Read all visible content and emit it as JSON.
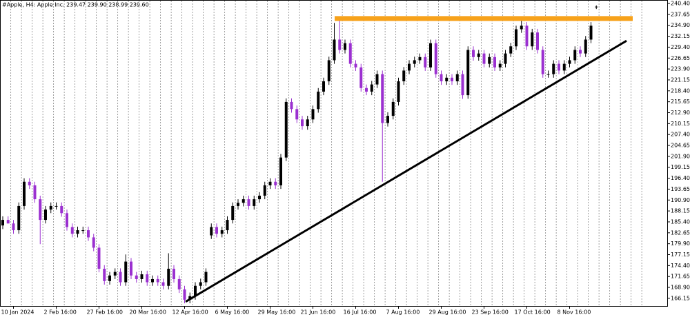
{
  "chart_data": {
    "type": "candlestick",
    "title": "#Apple, H4:  Apple Inc.  239.47 239.90 238.99 239.60",
    "categories": [
      null,
      null,
      "10 Jan 2024",
      null,
      null,
      null,
      null,
      null,
      null,
      null,
      "2 Feb 16:00",
      null,
      null,
      null,
      null,
      null,
      null,
      null,
      "27 Feb 16:00",
      null,
      null,
      null,
      null,
      null,
      null,
      null,
      "20 Mar 16:00",
      null,
      null,
      null,
      null,
      null,
      null,
      null,
      "12 Apr 16:00",
      null,
      null,
      null,
      null,
      null,
      null,
      null,
      "6 May 16:00",
      null,
      null,
      null,
      null,
      null,
      null,
      null,
      "29 May 16:00",
      null,
      null,
      null,
      null,
      null,
      null,
      null,
      "21 Jun 16:00",
      null,
      null,
      null,
      null,
      null,
      null,
      null,
      "16 Jul 16:00",
      null,
      null,
      null,
      null,
      null,
      null,
      null,
      "7 Aug 16:00",
      null,
      null,
      null,
      null,
      null,
      null,
      null,
      "29 Aug 16:00",
      null,
      null,
      null,
      null,
      null,
      null,
      null,
      "23 Sep 16:00",
      null,
      null,
      null,
      null,
      null,
      null,
      null,
      "17 Oct 16:00",
      null,
      null,
      null,
      null,
      null,
      null,
      null,
      "8 Nov 16:00",
      null,
      null,
      null,
      null,
      null
    ],
    "open": [
      184.5,
      185.9,
      185.0,
      183.3,
      189.4,
      195.5,
      194.6,
      191.1,
      185.9,
      188.5,
      189.4,
      189.4,
      187.6,
      184.1,
      182.4,
      183.3,
      183.3,
      181.5,
      178.9,
      173.6,
      170.5,
      171.9,
      172.8,
      170.2,
      175.4,
      171.9,
      171.0,
      172.2,
      170.2,
      171.0,
      170.2,
      169.3,
      173.6,
      171.0,
      168.4,
      165.8,
      166.7,
      169.3,
      170.2,
      182.0,
      184.1,
      182.4,
      183.3,
      185.9,
      189.4,
      190.2,
      191.1,
      189.4,
      191.1,
      192.0,
      194.6,
      195.5,
      194.6,
      201.6,
      215.6,
      213.8,
      211.2,
      209.5,
      211.2,
      213.8,
      218.2,
      220.8,
      226.1,
      231.3,
      228.7,
      230.4,
      225.2,
      224.3,
      219.1,
      218.2,
      220.0,
      222.6,
      210.3,
      212.1,
      215.6,
      220.8,
      223.5,
      225.2,
      226.1,
      226.9,
      224.3,
      230.4,
      222.6,
      220.8,
      221.7,
      220.8,
      222.6,
      217.3,
      228.7,
      226.9,
      227.8,
      225.2,
      226.9,
      224.3,
      225.2,
      227.8,
      229.6,
      233.9,
      234.8,
      229.6,
      233.1,
      228.7,
      222.6,
      222.6,
      225.2,
      223.5,
      225.2,
      226.1,
      228.7,
      227.8,
      231.3,
      239.47
    ],
    "high": [
      186.8,
      186.8,
      185.9,
      190.3,
      196.4,
      196.4,
      195.5,
      192.0,
      189.4,
      190.3,
      190.3,
      190.3,
      188.5,
      185.0,
      184.2,
      184.2,
      184.2,
      182.4,
      179.8,
      174.5,
      172.8,
      173.7,
      173.7,
      177.2,
      176.3,
      172.8,
      173.1,
      173.1,
      171.9,
      171.9,
      171.1,
      177.5,
      174.5,
      171.9,
      169.3,
      167.6,
      170.2,
      171.1,
      173.7,
      185.0,
      185.0,
      184.2,
      186.8,
      190.3,
      191.1,
      192.0,
      192.0,
      192.0,
      192.9,
      195.5,
      196.4,
      196.4,
      202.5,
      216.5,
      216.5,
      214.7,
      212.1,
      212.1,
      214.7,
      219.1,
      221.7,
      227.0,
      235.5,
      236.2,
      231.3,
      231.3,
      226.1,
      225.2,
      220.0,
      220.9,
      223.5,
      223.5,
      213.0,
      216.5,
      221.7,
      224.4,
      226.1,
      227.0,
      227.8,
      227.8,
      231.3,
      231.3,
      223.5,
      222.6,
      222.6,
      223.5,
      223.5,
      229.6,
      229.6,
      228.7,
      228.7,
      227.8,
      227.8,
      226.1,
      228.7,
      230.5,
      234.8,
      236.2,
      235.7,
      234.0,
      234.0,
      229.6,
      223.5,
      226.1,
      226.1,
      226.1,
      227.0,
      229.6,
      229.6,
      232.2,
      235.7,
      239.9
    ],
    "low": [
      183.6,
      185.0,
      182.4,
      182.4,
      188.5,
      193.7,
      190.2,
      179.8,
      185.0,
      187.6,
      188.5,
      186.7,
      183.2,
      181.5,
      181.5,
      182.4,
      180.6,
      178.0,
      172.7,
      169.6,
      169.6,
      171.0,
      169.3,
      169.3,
      171.0,
      170.1,
      170.1,
      169.3,
      169.3,
      169.3,
      168.4,
      168.4,
      170.1,
      167.5,
      164.9,
      164.9,
      165.8,
      168.4,
      169.3,
      181.1,
      181.5,
      181.5,
      182.4,
      185.0,
      188.5,
      189.3,
      188.5,
      188.5,
      190.2,
      191.1,
      193.7,
      193.7,
      193.7,
      200.7,
      212.9,
      210.3,
      208.6,
      208.6,
      210.3,
      212.9,
      217.3,
      219.9,
      225.2,
      227.8,
      227.8,
      224.3,
      223.4,
      218.2,
      217.3,
      217.3,
      219.1,
      195.5,
      209.4,
      211.2,
      214.7,
      219.9,
      222.6,
      224.3,
      225.2,
      223.4,
      223.4,
      221.7,
      219.9,
      219.9,
      219.9,
      219.9,
      216.4,
      216.4,
      226.0,
      226.0,
      224.3,
      224.3,
      223.4,
      223.4,
      224.3,
      226.9,
      228.7,
      233.0,
      228.7,
      228.7,
      227.8,
      221.7,
      221.7,
      221.7,
      222.6,
      222.6,
      224.3,
      225.2,
      226.9,
      226.9,
      230.4,
      238.99
    ],
    "close": [
      185.9,
      185.0,
      183.3,
      189.4,
      195.5,
      194.6,
      191.1,
      185.9,
      188.5,
      189.4,
      189.4,
      187.6,
      184.1,
      182.4,
      183.3,
      183.3,
      181.5,
      178.9,
      173.6,
      170.5,
      171.9,
      172.8,
      170.2,
      175.4,
      171.9,
      171.0,
      172.2,
      170.2,
      171.0,
      170.2,
      169.3,
      173.6,
      171.0,
      168.4,
      165.8,
      166.7,
      169.3,
      170.2,
      172.8,
      184.1,
      182.4,
      183.3,
      185.9,
      189.4,
      190.2,
      191.1,
      189.4,
      191.1,
      192.0,
      194.6,
      195.5,
      194.6,
      201.6,
      215.6,
      213.8,
      211.2,
      209.5,
      211.2,
      213.8,
      218.2,
      220.8,
      226.1,
      231.3,
      228.7,
      230.4,
      225.2,
      224.3,
      219.1,
      218.2,
      220.0,
      222.6,
      210.3,
      212.1,
      215.6,
      220.8,
      223.5,
      225.2,
      226.1,
      226.9,
      224.3,
      230.4,
      222.6,
      220.8,
      221.7,
      220.8,
      222.6,
      217.3,
      228.7,
      226.9,
      227.8,
      225.2,
      226.9,
      224.3,
      225.2,
      227.8,
      229.6,
      233.9,
      234.8,
      229.6,
      233.1,
      228.7,
      222.6,
      222.6,
      225.2,
      223.5,
      225.2,
      226.1,
      228.7,
      227.8,
      231.3,
      234.8,
      239.6
    ],
    "up_color": "#000000",
    "down_color": "#9b30d0",
    "ylim": [
      164.05,
      241.27
    ],
    "yticks": [
      166.15,
      {
        "value": 168.9,
        "label": "168.90"
      },
      171.65,
      {
        "value": 174.4,
        "label": "174.40"
      },
      177.15,
      {
        "value": 179.9,
        "label": "179.90"
      },
      182.65,
      {
        "value": 185.4,
        "label": "185.40"
      },
      188.15,
      {
        "value": 190.9,
        "label": "190.90"
      },
      193.65,
      {
        "value": 196.4,
        "label": "196.40"
      },
      199.15,
      {
        "value": 201.9,
        "label": "201.90"
      },
      204.65,
      {
        "value": 207.4,
        "label": "207.40"
      },
      210.15,
      {
        "value": 212.9,
        "label": "212.90"
      },
      215.65,
      {
        "value": 218.4,
        "label": "218.40"
      },
      221.15,
      {
        "value": 223.9,
        "label": "223.90"
      },
      226.65,
      {
        "value": 229.4,
        "label": "229.40"
      },
      232.15,
      {
        "value": 234.9,
        "label": "234.90"
      },
      237.65,
      {
        "value": 240.4,
        "label": "240.40"
      }
    ],
    "horizontal_line": {
      "value": 236.6,
      "color": "#f7a21b"
    },
    "trend_line": {
      "values": [
        165.3,
        231.0
      ],
      "color": "#000000"
    }
  }
}
